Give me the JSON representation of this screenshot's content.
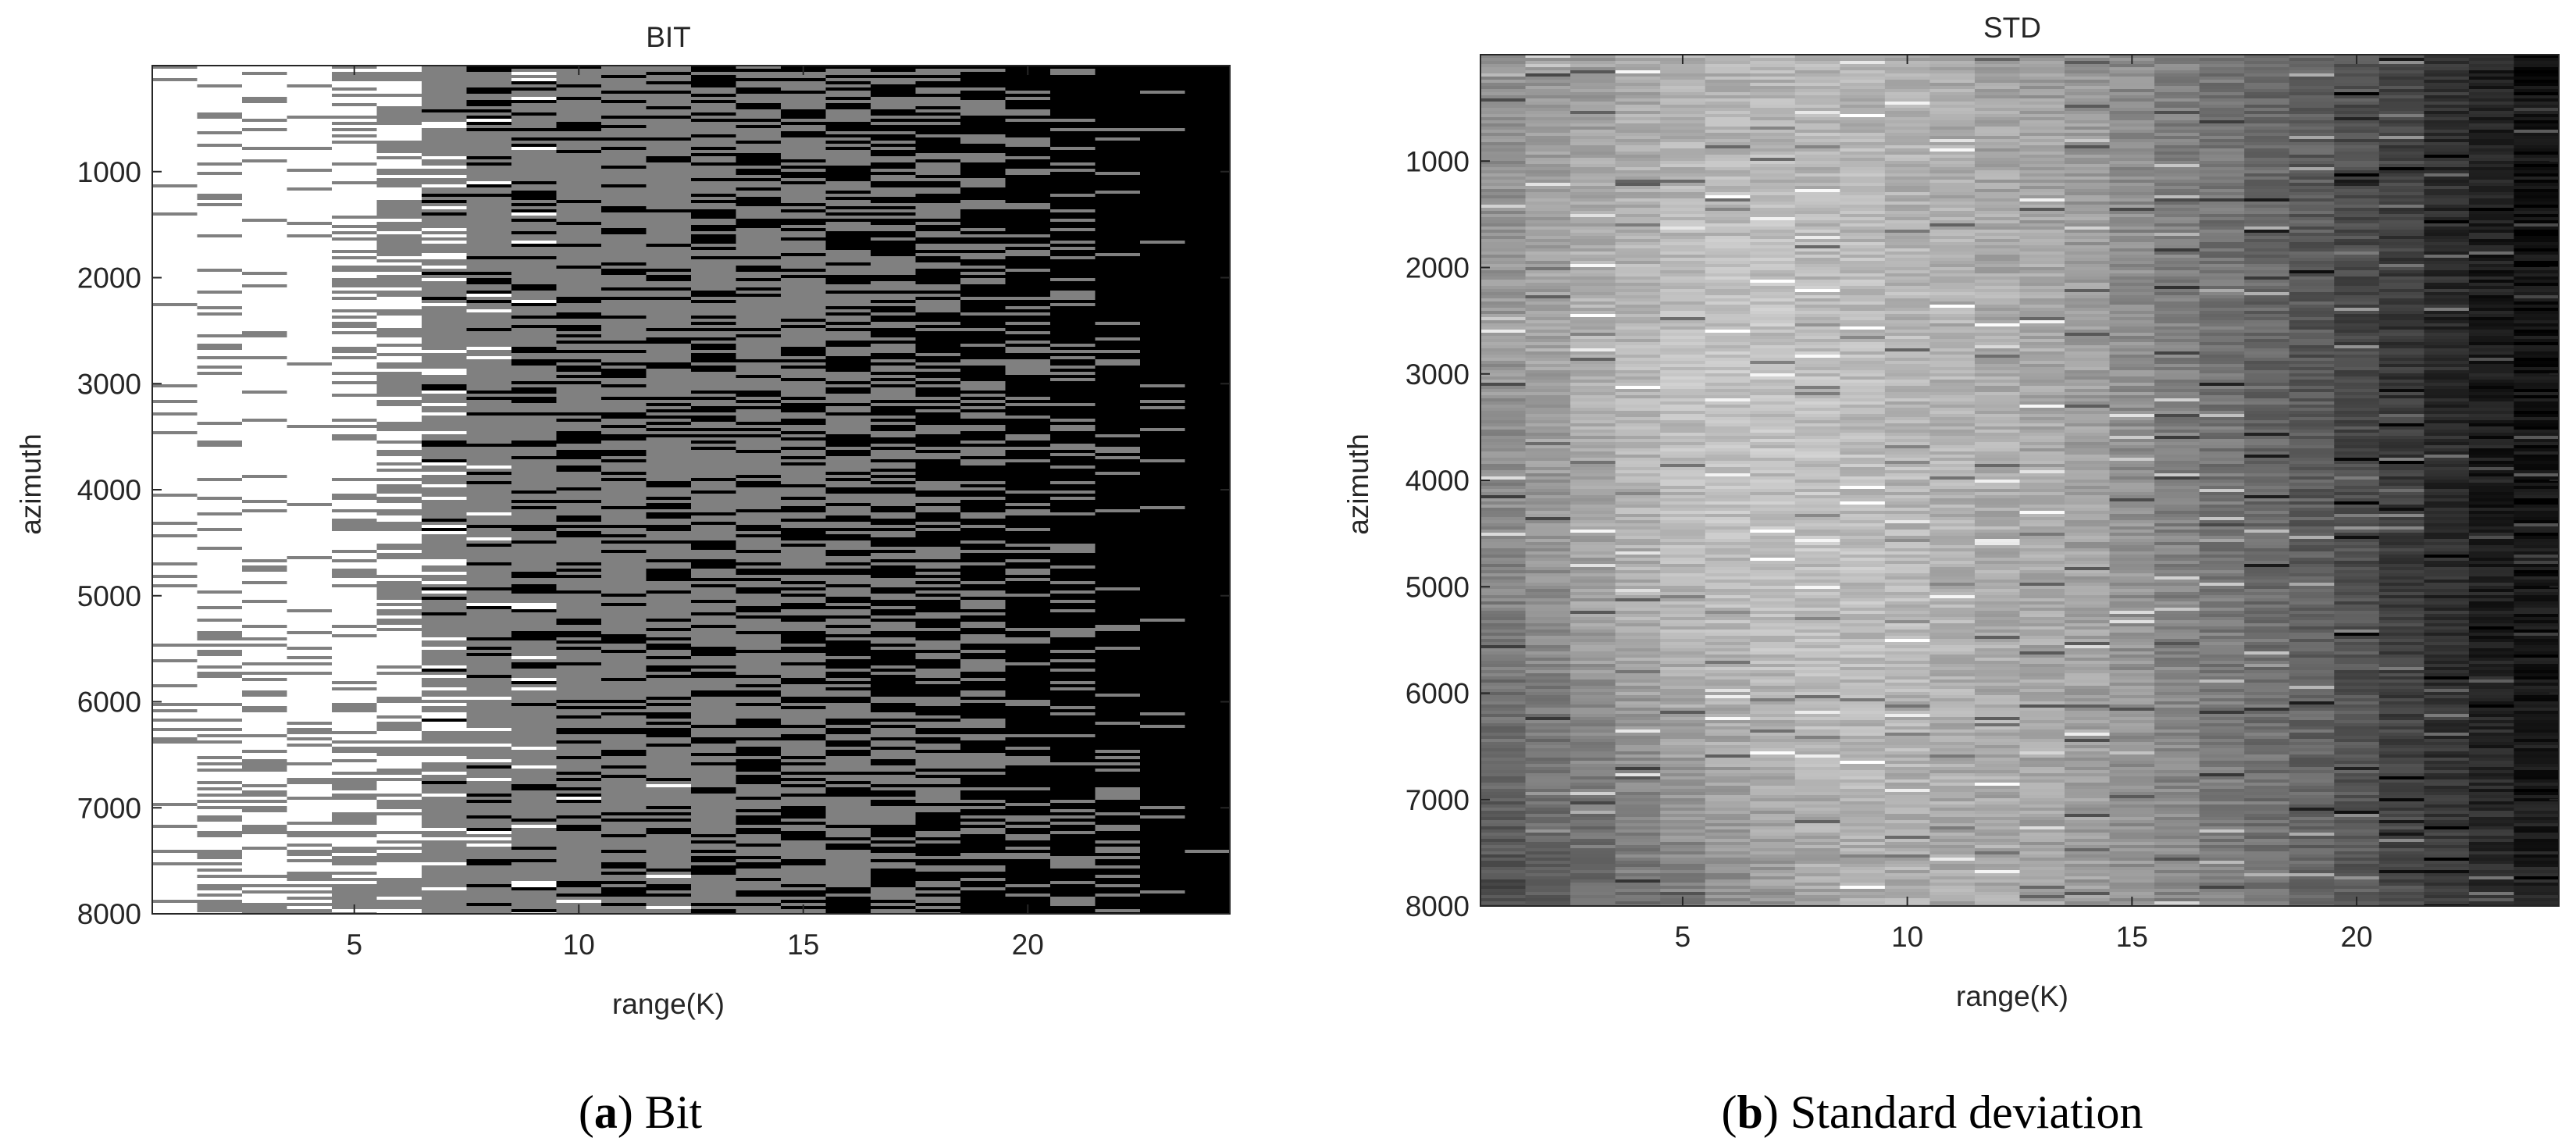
{
  "chart_data": [
    {
      "type": "heatmap",
      "title": "BIT",
      "xlabel": "range(K)",
      "ylabel": "azimuth",
      "x_ticks": [
        5,
        10,
        15,
        20
      ],
      "y_ticks": [
        1000,
        2000,
        3000,
        4000,
        5000,
        6000,
        7000,
        8000
      ],
      "xlim": [
        0.5,
        24.5
      ],
      "ylim": [
        0,
        8000
      ],
      "y_reversed": true,
      "columns": 24,
      "colormap": "gray",
      "levels": [
        "white",
        "gray",
        "black"
      ],
      "column_profile": [
        [
          0.95,
          0.95,
          0.92,
          0.9
        ],
        [
          0.92,
          0.92,
          0.9,
          0.6
        ],
        [
          0.95,
          0.95,
          0.93,
          0.75
        ],
        [
          0.95,
          0.97,
          0.95,
          0.75
        ],
        [
          0.8,
          0.8,
          0.8,
          0.7
        ],
        [
          0.7,
          0.7,
          0.75,
          0.7
        ],
        [
          0.55,
          0.55,
          0.55,
          0.55
        ],
        [
          0.5,
          0.48,
          0.48,
          0.5
        ],
        [
          0.48,
          0.45,
          0.48,
          0.5
        ],
        [
          0.45,
          0.42,
          0.45,
          0.5
        ],
        [
          0.45,
          0.42,
          0.42,
          0.48
        ],
        [
          0.42,
          0.42,
          0.42,
          0.48
        ],
        [
          0.4,
          0.4,
          0.4,
          0.48
        ],
        [
          0.4,
          0.4,
          0.4,
          0.45
        ],
        [
          0.4,
          0.4,
          0.38,
          0.43
        ],
        [
          0.35,
          0.32,
          0.35,
          0.4
        ],
        [
          0.3,
          0.3,
          0.3,
          0.38
        ],
        [
          0.28,
          0.28,
          0.28,
          0.35
        ],
        [
          0.25,
          0.25,
          0.25,
          0.3
        ],
        [
          0.22,
          0.2,
          0.2,
          0.25
        ],
        [
          0.18,
          0.18,
          0.18,
          0.22
        ],
        [
          0.12,
          0.1,
          0.12,
          0.18
        ],
        [
          0.08,
          0.06,
          0.06,
          0.1
        ],
        [
          0.04,
          0.02,
          0.02,
          0.06
        ]
      ]
    },
    {
      "type": "heatmap",
      "title": "STD",
      "xlabel": "range(K)",
      "ylabel": "azimuth",
      "x_ticks": [
        5,
        10,
        15,
        20
      ],
      "y_ticks": [
        1000,
        2000,
        3000,
        4000,
        5000,
        6000,
        7000,
        8000
      ],
      "xlim": [
        0.5,
        24.5
      ],
      "ylim": [
        0,
        8000
      ],
      "y_reversed": true,
      "columns": 24,
      "colormap": "gray",
      "column_profile": [
        [
          0.55,
          0.6,
          0.5,
          0.3
        ],
        [
          0.6,
          0.65,
          0.55,
          0.35
        ],
        [
          0.62,
          0.7,
          0.62,
          0.4
        ],
        [
          0.65,
          0.72,
          0.68,
          0.45
        ],
        [
          0.68,
          0.75,
          0.72,
          0.5
        ],
        [
          0.7,
          0.76,
          0.74,
          0.55
        ],
        [
          0.7,
          0.76,
          0.75,
          0.6
        ],
        [
          0.7,
          0.75,
          0.75,
          0.65
        ],
        [
          0.7,
          0.74,
          0.74,
          0.68
        ],
        [
          0.68,
          0.72,
          0.72,
          0.68
        ],
        [
          0.66,
          0.7,
          0.7,
          0.66
        ],
        [
          0.64,
          0.68,
          0.68,
          0.66
        ],
        [
          0.62,
          0.66,
          0.66,
          0.64
        ],
        [
          0.6,
          0.62,
          0.64,
          0.62
        ],
        [
          0.55,
          0.56,
          0.58,
          0.58
        ],
        [
          0.5,
          0.5,
          0.52,
          0.54
        ],
        [
          0.46,
          0.45,
          0.48,
          0.5
        ],
        [
          0.42,
          0.4,
          0.43,
          0.46
        ],
        [
          0.38,
          0.34,
          0.38,
          0.42
        ],
        [
          0.33,
          0.28,
          0.32,
          0.36
        ],
        [
          0.27,
          0.22,
          0.25,
          0.3
        ],
        [
          0.2,
          0.16,
          0.18,
          0.24
        ],
        [
          0.14,
          0.1,
          0.12,
          0.18
        ],
        [
          0.08,
          0.06,
          0.08,
          0.12
        ]
      ]
    }
  ],
  "captions": [
    {
      "letter": "(a)",
      "text": " Bit"
    },
    {
      "letter": "(b)",
      "text": " Standard deviation"
    }
  ]
}
